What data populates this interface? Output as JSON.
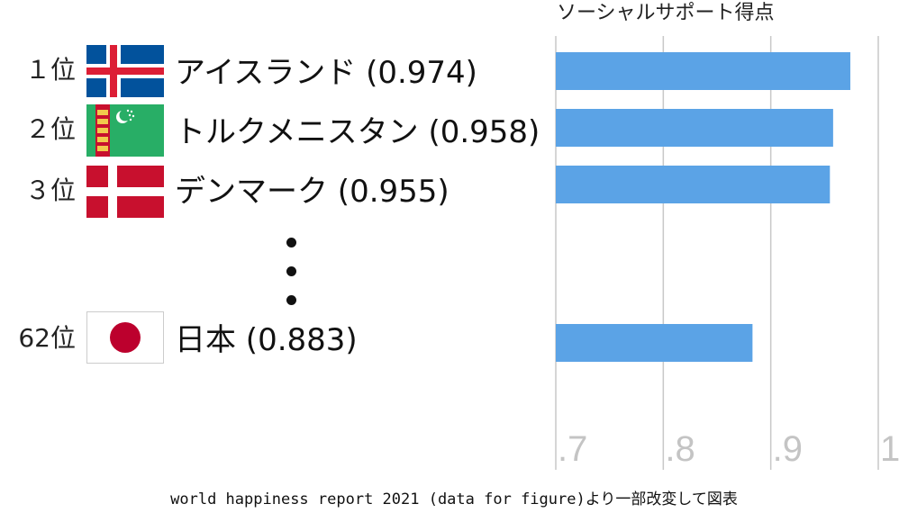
{
  "chart_data": {
    "type": "bar",
    "orientation": "horizontal",
    "title": "ソーシャルサポート得点",
    "categories": [
      "アイスランド",
      "トルクメニスタン",
      "デンマーク",
      "日本"
    ],
    "values": [
      0.974,
      0.958,
      0.955,
      0.883
    ],
    "x_ticks": [
      ".7",
      ".8",
      ".9",
      "1"
    ],
    "x_tick_values": [
      0.7,
      0.8,
      0.9,
      1.0
    ],
    "xlim": [
      0.7,
      1.0
    ],
    "grid": true,
    "bar_color": "#5ba3e6",
    "gridline_color": "#c8c8c8"
  },
  "rows": [
    {
      "rank": "１位",
      "country": "アイスランド (0.974)",
      "flag": "iceland-flag"
    },
    {
      "rank": "２位",
      "country": "トルクメニスタン (0.958)",
      "flag": "turkmenistan-flag"
    },
    {
      "rank": "３位",
      "country": "デンマーク (0.955)",
      "flag": "denmark-flag"
    },
    {
      "rank": "62位",
      "country": "日本 (0.883)",
      "flag": "japan-flag"
    }
  ],
  "caption": "world happiness report 2021 (data for figure)より一部改変して図表"
}
